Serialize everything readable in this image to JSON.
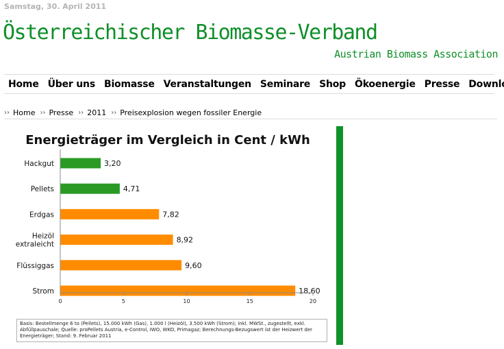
{
  "header": {
    "date": "Samstag, 30. April 2011",
    "title": "Österreichischer Biomasse-Verband",
    "subtitle": "Austrian Biomass Association"
  },
  "nav": {
    "items": [
      "Home",
      "Über uns",
      "Biomasse",
      "Veranstaltungen",
      "Seminare",
      "Shop",
      "Ökoenergie",
      "Presse",
      "Download"
    ]
  },
  "breadcrumb": {
    "separator": "››",
    "items": [
      "Home",
      "Presse",
      "2011",
      "Preisexplosion wegen fossiler Energie"
    ]
  },
  "colors": {
    "title_green": "#0f8f2a",
    "bar_green": "#2a9a25",
    "bar_orange": "#ff8c00",
    "side_bar_green": "#10912a"
  },
  "chart_data": {
    "type": "bar",
    "orientation": "horizontal",
    "title": "Energieträger im Vergleich in Cent / kWh",
    "categories": [
      "Hackgut",
      "Pellets",
      "Erdgas",
      "Heizöl extraleicht",
      "Flüssiggas",
      "Strom"
    ],
    "values": [
      3.2,
      4.71,
      7.82,
      8.92,
      9.6,
      18.6
    ],
    "data_labels": [
      "3,20",
      "4,71",
      "7,82",
      "8,92",
      "9,60",
      "18,60"
    ],
    "bar_colors": [
      "#2a9a25",
      "#2a9a25",
      "#ff8c00",
      "#ff8c00",
      "#ff8c00",
      "#ff8c00"
    ],
    "xlim": [
      0,
      20
    ],
    "xticks": [
      0,
      5,
      10,
      15,
      20
    ],
    "grid": false,
    "legend": "none",
    "footnote": "Basis: Bestellmenge 6 to (Pellets), 15.000 kWh (Gas), 1.000 l (Heizöl), 3.500 kWh (Strom); inkl. MWSt., zugestellt, exkl. Abfüllpauschale; Quelle: proPellets Austria, e-Control, IWO, WKO, Primagaz; Berechnungs-Bezugswert ist der Heizwert der Energieträger; Stand: 9. Februar 2011"
  }
}
